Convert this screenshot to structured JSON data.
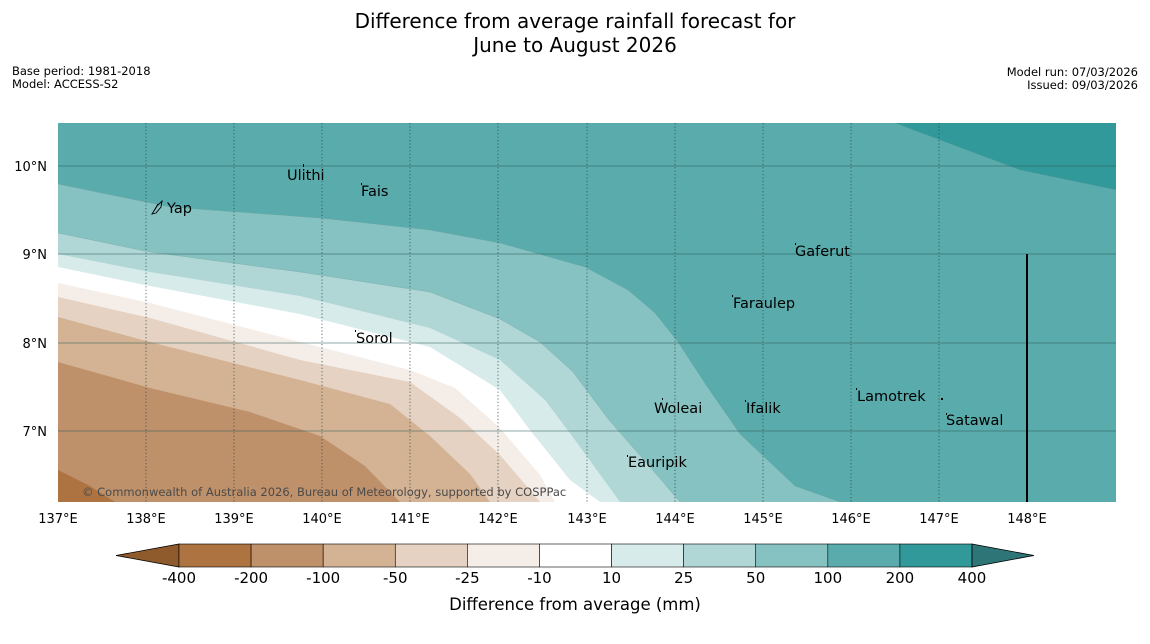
{
  "header": {
    "title_line1": "Difference from average rainfall forecast for",
    "title_line2": "June to August 2026",
    "base_period": "Base period: 1981-2018",
    "model": "Model: ACCESS-S2",
    "model_run": "Model run: 07/03/2026",
    "issued": "Issued: 09/03/2026"
  },
  "map": {
    "lon_ticks": [
      "137°E",
      "138°E",
      "139°E",
      "140°E",
      "141°E",
      "142°E",
      "143°E",
      "144°E",
      "145°E",
      "146°E",
      "147°E",
      "148°E"
    ],
    "lat_ticks": [
      "10°N",
      "9°N",
      "8°N",
      "7°N"
    ],
    "places": [
      {
        "name": "Ulithi"
      },
      {
        "name": "Fais"
      },
      {
        "name": "Yap"
      },
      {
        "name": "Gaferut"
      },
      {
        "name": "Faraulep"
      },
      {
        "name": "Sorol"
      },
      {
        "name": "Woleai"
      },
      {
        "name": "Ifalik"
      },
      {
        "name": "Lamotrek"
      },
      {
        "name": "Satawal"
      },
      {
        "name": "Eauripik"
      }
    ],
    "copyright": "© Commonwealth of Australia 2026, Bureau of Meteorology, supported by COSPPac"
  },
  "colorbar": {
    "ticks": [
      "-400",
      "-200",
      "-100",
      "-50",
      "-25",
      "-10",
      "10",
      "25",
      "50",
      "100",
      "200",
      "400"
    ],
    "colors": [
      "#8f5b2c",
      "#ad7340",
      "#bf916a",
      "#d4b394",
      "#e5d2c2",
      "#f4ede8",
      "#ffffff",
      "#d7ebea",
      "#b0d7d6",
      "#86c2c1",
      "#5aabac",
      "#32999a",
      "#2d7577"
    ],
    "title": "Difference from average (mm)"
  }
}
